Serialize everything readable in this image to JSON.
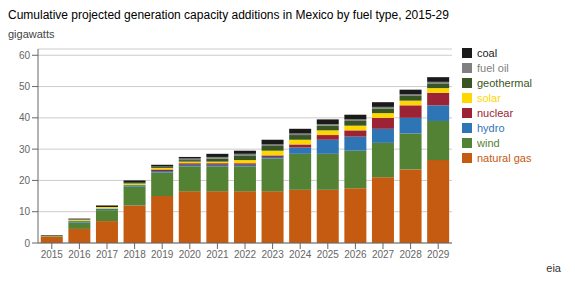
{
  "chart_data": {
    "type": "bar",
    "stacked": true,
    "title": "Cumulative projected generation capacity additions in Mexico by fuel type, 2015-29",
    "ylabel": "gigawatts",
    "categories": [
      "2015",
      "2016",
      "2017",
      "2018",
      "2019",
      "2020",
      "2021",
      "2022",
      "2023",
      "2024",
      "2025",
      "2026",
      "2027",
      "2028",
      "2029"
    ],
    "series": [
      {
        "name": "natural gas",
        "color": "#c55a11",
        "values": [
          2.0,
          4.5,
          7.0,
          12.0,
          15.0,
          16.5,
          16.5,
          16.5,
          16.5,
          17.0,
          17.0,
          17.5,
          21.0,
          23.5,
          26.5
        ]
      },
      {
        "name": "wind",
        "color": "#548235",
        "values": [
          0.2,
          2.0,
          3.5,
          6.0,
          7.5,
          8.0,
          8.0,
          8.0,
          10.5,
          11.5,
          11.5,
          12.0,
          11.0,
          11.5,
          12.5
        ]
      },
      {
        "name": "hydro",
        "color": "#2e75b6",
        "values": [
          0.0,
          0.5,
          0.5,
          0.5,
          0.5,
          0.5,
          0.5,
          0.5,
          0.5,
          2.0,
          4.5,
          4.5,
          4.5,
          5.0,
          5.0
        ]
      },
      {
        "name": "nuclear",
        "color": "#9b2335",
        "values": [
          0.0,
          0.0,
          0.0,
          0.0,
          0.5,
          0.5,
          0.5,
          0.5,
          0.5,
          1.0,
          1.5,
          2.0,
          3.5,
          4.0,
          4.0
        ]
      },
      {
        "name": "solar",
        "color": "#ffd700",
        "values": [
          0.1,
          0.5,
          0.5,
          0.5,
          0.5,
          0.5,
          0.5,
          1.0,
          1.5,
          1.5,
          1.5,
          1.5,
          1.5,
          1.5,
          1.5
        ]
      },
      {
        "name": "geothermal",
        "color": "#375623",
        "values": [
          0.0,
          0.0,
          0.0,
          0.5,
          0.5,
          0.5,
          1.0,
          1.5,
          1.5,
          1.5,
          1.5,
          1.5,
          1.5,
          1.5,
          1.5
        ]
      },
      {
        "name": "fuel oil",
        "color": "#808080",
        "values": [
          0.0,
          0.0,
          0.0,
          0.0,
          0.0,
          0.5,
          0.5,
          0.5,
          0.5,
          0.5,
          0.5,
          0.5,
          0.5,
          0.5,
          0.5
        ]
      },
      {
        "name": "coal",
        "color": "#1a1a1a",
        "values": [
          0.2,
          0.3,
          0.5,
          0.5,
          0.5,
          0.5,
          1.0,
          1.0,
          1.5,
          1.5,
          1.5,
          1.5,
          1.5,
          1.5,
          1.5
        ]
      }
    ],
    "ylim": [
      0,
      62
    ],
    "yticks": [
      0,
      10,
      20,
      30,
      40,
      50,
      60
    ],
    "grid": true,
    "legend": "right",
    "annotations": [
      "eia"
    ]
  }
}
